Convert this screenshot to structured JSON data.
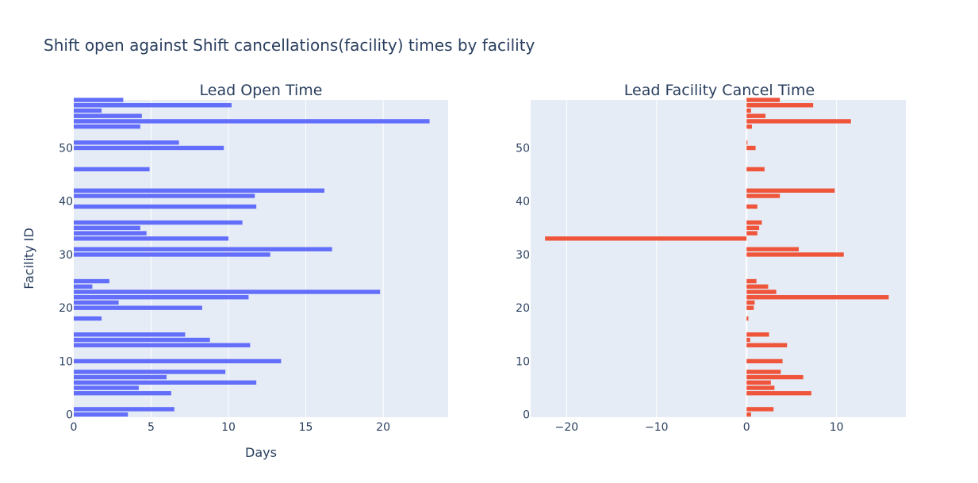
{
  "chart_data": {
    "type": "bar",
    "orientation": "horizontal",
    "title": "Shift open against Shift cancellations(facility) times by facility",
    "ylabel": "Facility ID",
    "facility_ids": [
      0,
      1,
      4,
      5,
      6,
      7,
      8,
      10,
      13,
      14,
      15,
      18,
      20,
      21,
      22,
      23,
      24,
      25,
      30,
      31,
      33,
      34,
      35,
      36,
      39,
      41,
      42,
      46,
      50,
      51,
      54,
      55,
      56,
      57,
      58,
      59
    ],
    "colors": {
      "open": "#636efa",
      "cancel": "#ef553b",
      "plot_bg": "#e5ecf6",
      "text": "#2a3f5f"
    },
    "subplots": [
      {
        "subtitle": "Lead Open Time",
        "xlabel": "Days",
        "xlim": [
          0,
          24.2
        ],
        "xticks": [
          0,
          5,
          10,
          15,
          20
        ],
        "ylim": [
          -0.5,
          59
        ],
        "yticks": [
          0,
          10,
          20,
          30,
          40,
          50
        ],
        "values": [
          3.5,
          6.5,
          6.3,
          4.2,
          11.8,
          6.0,
          9.8,
          13.4,
          11.4,
          8.8,
          7.2,
          1.8,
          8.3,
          2.9,
          11.3,
          19.8,
          1.2,
          2.3,
          12.7,
          16.7,
          10.0,
          4.7,
          4.3,
          10.9,
          11.8,
          11.7,
          16.2,
          4.9,
          9.7,
          6.8,
          4.3,
          23.0,
          4.4,
          1.8,
          10.2,
          3.2
        ]
      },
      {
        "subtitle": "Lead Facility Cancel Time",
        "xlabel": "",
        "xlim": [
          -24,
          17.7
        ],
        "xticks": [
          -20,
          -10,
          0,
          10
        ],
        "ylim": [
          -0.5,
          59
        ],
        "yticks": [
          0,
          10,
          20,
          30,
          40,
          50
        ],
        "values": [
          0.5,
          3.0,
          7.2,
          3.1,
          2.7,
          6.3,
          3.8,
          4.0,
          4.5,
          0.4,
          2.5,
          0.2,
          0.8,
          0.9,
          15.8,
          3.3,
          2.4,
          1.1,
          10.8,
          5.8,
          -22.4,
          1.2,
          1.4,
          1.7,
          1.2,
          3.7,
          9.8,
          2.0,
          1.0,
          0.1,
          0.6,
          11.6,
          2.1,
          0.5,
          7.4,
          3.7
        ]
      }
    ]
  }
}
